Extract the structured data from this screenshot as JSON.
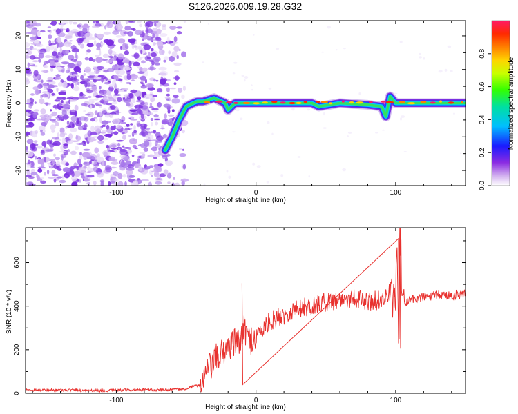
{
  "title": "S126.2026.009.19.28.G32",
  "chart_data": [
    {
      "type": "heatmap",
      "xlabel": "Height of straight line (km)",
      "ylabel": "Frequency (Hz)",
      "xlim": [
        -165,
        150
      ],
      "ylim": [
        -24.5,
        24.5
      ],
      "xticks": [
        -100,
        0,
        100
      ],
      "yticks": [
        -20,
        -10,
        0,
        10,
        20
      ],
      "colorbar": {
        "label": "Normalized spectral amplitude",
        "range": [
          0,
          1
        ],
        "ticks": [
          0.0,
          0.2,
          0.4,
          0.6,
          0.8
        ],
        "tick_labels": [
          "0.0",
          "0.2",
          "0.4",
          "0.6",
          "0.8"
        ]
      },
      "trace": {
        "x": [
          -65,
          -60,
          -55,
          -50,
          -45,
          -42,
          -38,
          -30,
          -22,
          -20,
          -15,
          0,
          20,
          40,
          45,
          60,
          80,
          90,
          93,
          96,
          100,
          120,
          150
        ],
        "y": [
          -14,
          -10,
          -5,
          -1,
          0,
          0.5,
          0.5,
          1.5,
          0,
          -2,
          0,
          0,
          0,
          0,
          -1,
          0,
          -0.5,
          -1,
          -4,
          2,
          0,
          0,
          0
        ]
      }
    },
    {
      "type": "line",
      "xlabel": "Height of straight line (km)",
      "ylabel": "SNR (10 * v/v)",
      "xlim": [
        -165,
        150
      ],
      "ylim": [
        0,
        760
      ],
      "xticks": [
        -100,
        0,
        100
      ],
      "yticks": [
        0,
        200,
        400,
        600
      ],
      "color": "#e8312e",
      "series": [
        {
          "name": "SNR",
          "x": [
            -165,
            -150,
            -130,
            -110,
            -90,
            -70,
            -50,
            -40,
            -35,
            -30,
            -25,
            -20,
            -15,
            -10,
            -8,
            -5,
            0,
            10,
            20,
            30,
            40,
            50,
            60,
            70,
            80,
            90,
            95,
            100,
            101,
            102,
            103,
            105,
            110,
            120,
            130,
            140,
            150
          ],
          "values": [
            15,
            15,
            15,
            12,
            15,
            15,
            20,
            40,
            100,
            150,
            180,
            220,
            230,
            250,
            300,
            240,
            260,
            330,
            360,
            390,
            400,
            420,
            430,
            440,
            420,
            430,
            450,
            420,
            700,
            250,
            760,
            400,
            430,
            440,
            450,
            450,
            460
          ]
        }
      ]
    }
  ]
}
